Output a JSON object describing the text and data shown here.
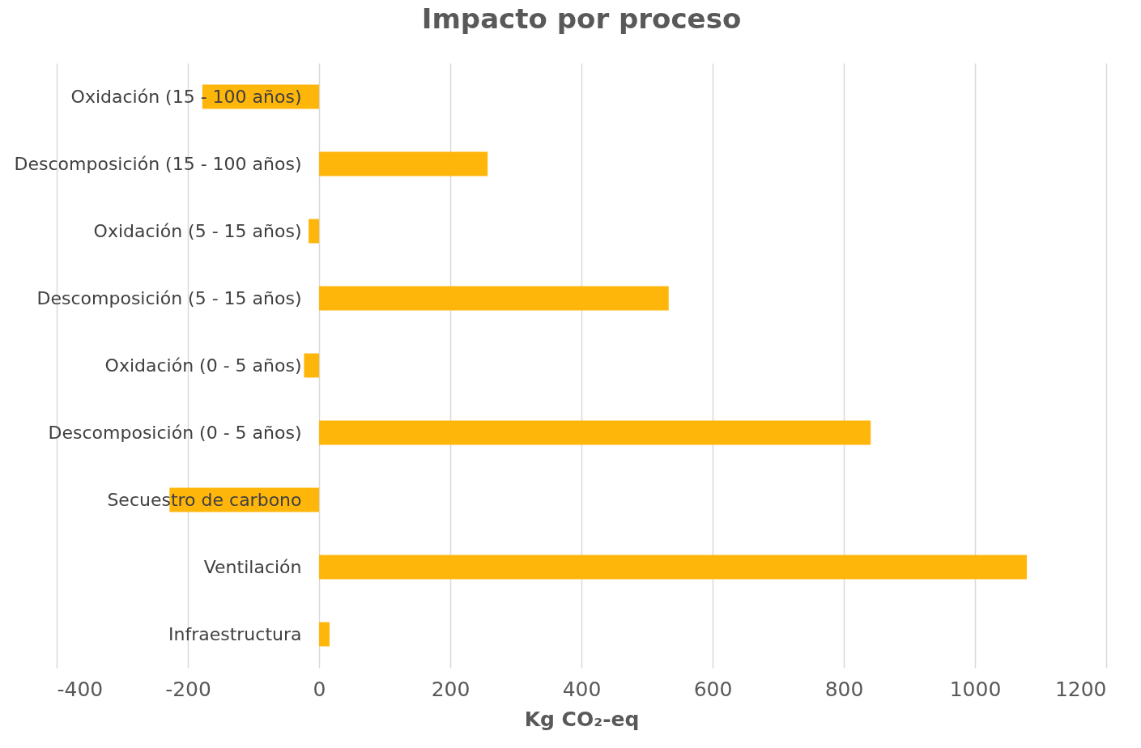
{
  "chart_data": {
    "type": "bar",
    "orientation": "horizontal",
    "title": "Impacto por proceso",
    "xlabel": "Kg CO₂-eq",
    "categories": [
      "Oxidación (15 - 100 años)",
      "Descomposición (15 - 100 años)",
      "Oxidación (5 - 15 años)",
      "Descomposición (5 - 15 años)",
      "Oxidación (0 - 5 años)",
      "Descomposición (0 - 5 años)",
      "Secuestro de carbono",
      "Ventilación",
      "Infraestructura"
    ],
    "values": [
      -178,
      257,
      -16,
      533,
      -23,
      841,
      -228,
      1079,
      16
    ],
    "color": "#ffb60b",
    "xlim": [
      -400,
      1200
    ],
    "xticks": [
      -400,
      -200,
      0,
      200,
      400,
      600,
      800,
      1000,
      1200
    ],
    "grid": "x"
  }
}
